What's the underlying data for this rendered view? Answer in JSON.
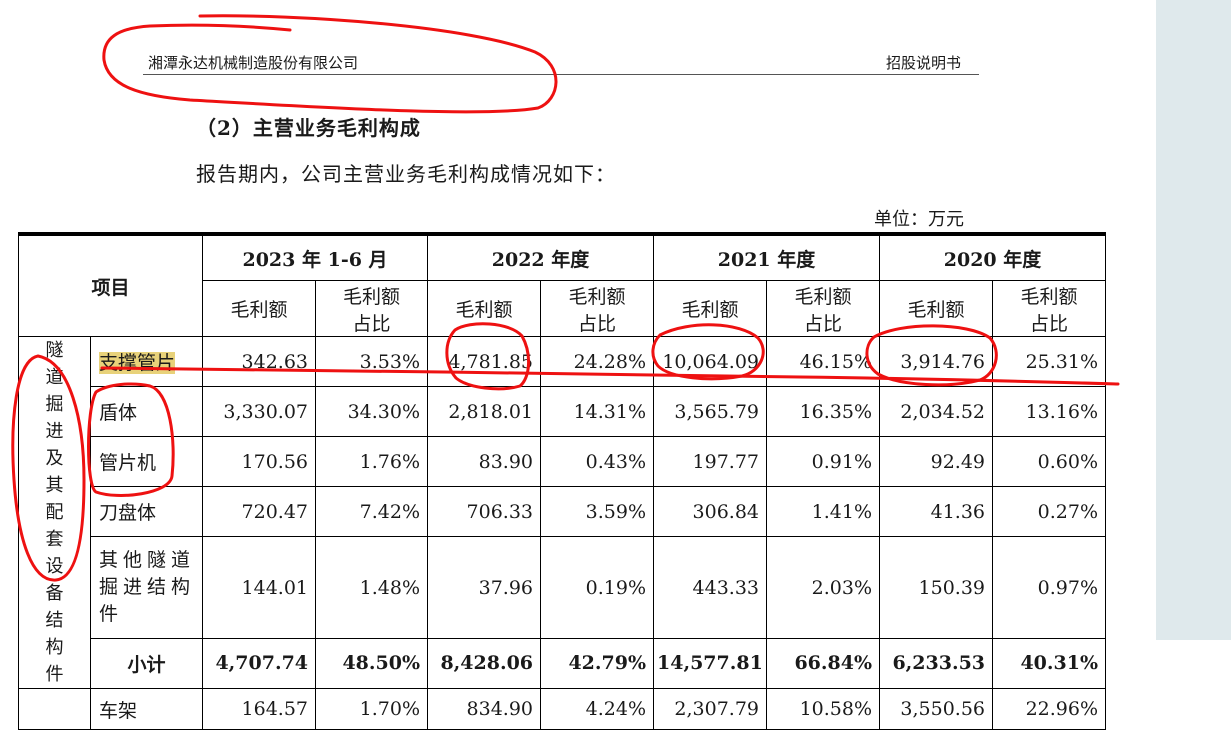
{
  "header": {
    "company": "湘潭永达机械制造股份有限公司",
    "document": "招股说明书"
  },
  "section_title": "（2）主营业务毛利构成",
  "intro": "报告期内，公司主营业务毛利构成情况如下：",
  "unit": "单位：万元",
  "table": {
    "item_header": "项目",
    "periods": [
      "2023 年 1-6 月",
      "2022 年度",
      "2021 年度",
      "2020 年度"
    ],
    "sub_headers": {
      "gross_profit": "毛利额",
      "ratio": "毛利额占比"
    },
    "group_label": "隧道掘进及其配套设备结构件",
    "rows": [
      {
        "name": "支撑管片",
        "cells": [
          "342.63",
          "3.53%",
          "4,781.85",
          "24.28%",
          "10,064.09",
          "46.15%",
          "3,914.76",
          "25.31%"
        ]
      },
      {
        "name": "盾体",
        "cells": [
          "3,330.07",
          "34.30%",
          "2,818.01",
          "14.31%",
          "3,565.79",
          "16.35%",
          "2,034.52",
          "13.16%"
        ]
      },
      {
        "name": "管片机",
        "cells": [
          "170.56",
          "1.76%",
          "83.90",
          "0.43%",
          "197.77",
          "0.91%",
          "92.49",
          "0.60%"
        ]
      },
      {
        "name": "刀盘体",
        "cells": [
          "720.47",
          "7.42%",
          "706.33",
          "3.59%",
          "306.84",
          "1.41%",
          "41.36",
          "0.27%"
        ]
      },
      {
        "name": "其他隧道掘进结构件",
        "cells": [
          "144.01",
          "1.48%",
          "37.96",
          "0.19%",
          "443.33",
          "2.03%",
          "150.39",
          "0.97%"
        ]
      }
    ],
    "subtotal": {
      "name": "小计",
      "cells": [
        "4,707.74",
        "48.50%",
        "8,428.06",
        "42.79%",
        "14,577.81",
        "66.84%",
        "6,233.53",
        "40.31%"
      ]
    },
    "next_row": {
      "name": "车架",
      "cells": [
        "164.57",
        "1.70%",
        "834.90",
        "4.24%",
        "2,307.79",
        "10.58%",
        "3,550.56",
        "22.96%"
      ]
    }
  },
  "annotation_color": "#ee1111"
}
